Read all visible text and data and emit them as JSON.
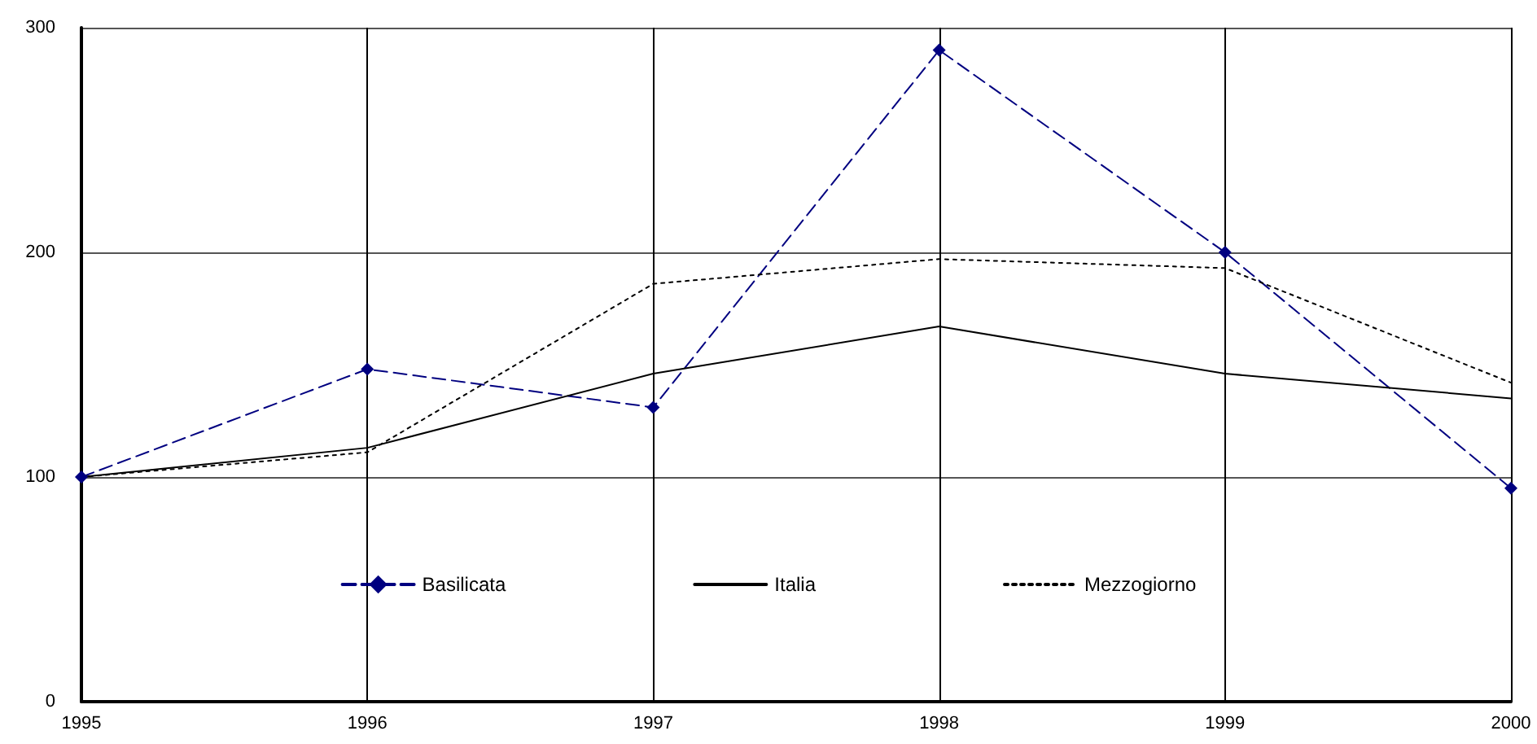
{
  "chart_data": {
    "type": "line",
    "categories": [
      "1995",
      "1996",
      "1997",
      "1998",
      "1999",
      "2000"
    ],
    "series": [
      {
        "name": "Basilicata",
        "color": "#000080",
        "line_style": "dashed",
        "marker": "diamond",
        "values": [
          100,
          148,
          131,
          290,
          200,
          95
        ]
      },
      {
        "name": "Italia",
        "color": "#000000",
        "line_style": "solid",
        "marker": "none",
        "values": [
          100,
          113,
          146,
          167,
          146,
          135
        ]
      },
      {
        "name": "Mezzogiorno",
        "color": "#000000",
        "line_style": "dotted",
        "marker": "none",
        "values": [
          100,
          111,
          186,
          197,
          193,
          142
        ]
      }
    ],
    "ylim": [
      0,
      300
    ],
    "yticks": [
      0,
      100,
      200,
      300
    ],
    "grid": true,
    "legend": "bottom"
  }
}
